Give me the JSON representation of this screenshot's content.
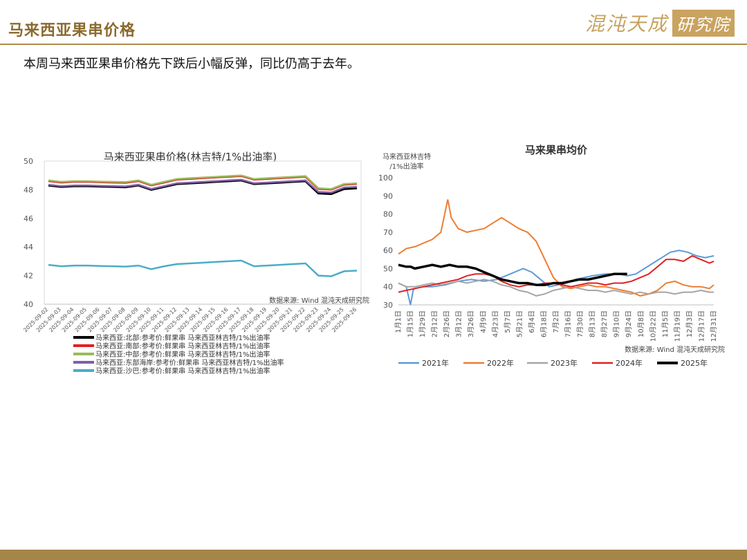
{
  "header": {
    "title": "马来西亚果串价格",
    "logo_text": "混沌天成",
    "logo_box": "研究院"
  },
  "summary": "本周马来西亚果串价格先下跌后小幅反弹，同比仍高于去年。",
  "colors": {
    "gold": "#b08a4a",
    "logo": "#c9a35f"
  },
  "chart_data": [
    {
      "type": "line",
      "title": "马来西亚果串价格(林吉特/1%出油率)",
      "source": "数据来源: Wind  混沌天成研究院",
      "ylim": [
        40,
        50
      ],
      "yticks": [
        40,
        42,
        44,
        46,
        48,
        50
      ],
      "grid": false,
      "legend_position": "bottom",
      "x": [
        "2025-09-02",
        "2025-09-03",
        "2025-09-04",
        "2025-09-05",
        "2025-09-06",
        "2025-09-07",
        "2025-09-08",
        "2025-09-09",
        "2025-09-10",
        "2025-09-11",
        "2025-09-12",
        "2025-09-13",
        "2025-09-14",
        "2025-09-15",
        "2025-09-16",
        "2025-09-17",
        "2025-09-18",
        "2025-09-19",
        "2025-09-20",
        "2025-09-21",
        "2025-09-22",
        "2025-09-23",
        "2025-09-24",
        "2025-09-25",
        "2025-09-26"
      ],
      "series": [
        {
          "name": "马来西亚:北部:参考价:鲜果串 马来西亚林吉特/1%出油率",
          "color": "#000000",
          "values": [
            48.3,
            48.2,
            48.25,
            48.25,
            48.22,
            48.2,
            48.18,
            48.3,
            48.0,
            48.2,
            48.4,
            48.45,
            48.5,
            48.55,
            48.6,
            48.65,
            48.4,
            48.45,
            48.5,
            48.55,
            48.6,
            47.75,
            47.7,
            48.05,
            48.1
          ]
        },
        {
          "name": "马来西亚:南部:参考价:鲜果串 马来西亚林吉特/1%出油率",
          "color": "#e02020",
          "values": [
            48.6,
            48.5,
            48.55,
            48.55,
            48.52,
            48.5,
            48.48,
            48.6,
            48.3,
            48.5,
            48.7,
            48.75,
            48.8,
            48.85,
            48.9,
            48.95,
            48.7,
            48.75,
            48.8,
            48.85,
            48.9,
            48.05,
            48.0,
            48.35,
            48.4
          ]
        },
        {
          "name": "马来西亚:中部:参考价:鲜果串 马来西亚林吉特/1%出油率",
          "color": "#9bbb59",
          "values": [
            48.65,
            48.55,
            48.6,
            48.6,
            48.57,
            48.55,
            48.53,
            48.65,
            48.35,
            48.55,
            48.75,
            48.8,
            48.85,
            48.9,
            48.95,
            49.0,
            48.75,
            48.8,
            48.85,
            48.9,
            48.95,
            48.1,
            48.05,
            48.4,
            48.45
          ]
        },
        {
          "name": "马来西亚:东部海岸:参考价:鲜果串 马来西亚林吉特/1%出油率",
          "color": "#7f5fa8",
          "values": [
            48.35,
            48.25,
            48.3,
            48.3,
            48.27,
            48.25,
            48.23,
            48.35,
            48.05,
            48.25,
            48.45,
            48.5,
            48.55,
            48.6,
            48.65,
            48.7,
            48.45,
            48.5,
            48.55,
            48.6,
            48.65,
            47.85,
            47.8,
            48.15,
            48.2
          ]
        },
        {
          "name": "马来西亚:沙巴:参考价:鲜果串 马来西亚林吉特/1%出油率",
          "color": "#4bacc6",
          "values": [
            42.75,
            42.65,
            42.7,
            42.7,
            42.67,
            42.65,
            42.63,
            42.7,
            42.45,
            42.65,
            42.8,
            42.85,
            42.9,
            42.95,
            43.0,
            43.05,
            42.65,
            42.7,
            42.75,
            42.8,
            42.85,
            42.0,
            41.95,
            42.3,
            42.35
          ]
        }
      ]
    },
    {
      "type": "line",
      "title": "马来果串均价",
      "ylabel": "马来西亚林吉特\n/1%出油率",
      "source": "数据来源: Wind  混沌天成研究院",
      "ylim": [
        30,
        100
      ],
      "yticks": [
        30,
        40,
        50,
        60,
        70,
        80,
        90,
        100
      ],
      "grid": false,
      "legend_position": "bottom",
      "x_labels": [
        "1月1日",
        "1月15日",
        "1月29日",
        "2月12日",
        "2月26日",
        "3月12日",
        "3月26日",
        "4月9日",
        "4月23日",
        "5月7日",
        "5月21日",
        "6月4日",
        "6月18日",
        "7月2日",
        "7月16日",
        "7月30日",
        "8月13日",
        "8月27日",
        "9月10日",
        "9月24日",
        "10月8日",
        "10月22日",
        "11月5日",
        "11月19日",
        "12月3日",
        "12月17日",
        "12月31日"
      ],
      "x_day_range": [
        1,
        365
      ],
      "series": [
        {
          "name": "2021年",
          "color": "#5b9bd5",
          "x": [
            1,
            10,
            15,
            18,
            20,
            30,
            40,
            55,
            70,
            85,
            100,
            115,
            125,
            135,
            145,
            155,
            165,
            175,
            185,
            195,
            205,
            215,
            225,
            240,
            255,
            265,
            275,
            285,
            295,
            305,
            315,
            325,
            335,
            345,
            355,
            365
          ],
          "y": [
            42,
            40,
            30,
            38,
            39,
            40,
            40,
            41,
            43,
            44,
            43,
            44,
            46,
            48,
            50,
            48,
            44,
            40,
            41,
            42,
            44,
            45,
            46,
            47,
            47,
            46,
            47,
            50,
            53,
            56,
            59,
            60,
            59,
            57,
            56,
            57
          ]
        },
        {
          "name": "2022年",
          "color": "#ed7d31",
          "x": [
            1,
            10,
            20,
            30,
            40,
            50,
            58,
            62,
            70,
            80,
            90,
            100,
            110,
            120,
            130,
            140,
            150,
            160,
            170,
            180,
            190,
            200,
            210,
            220,
            230,
            240,
            250,
            260,
            270,
            280,
            290,
            300,
            310,
            320,
            330,
            340,
            350,
            360,
            365
          ],
          "y": [
            58,
            61,
            62,
            64,
            66,
            70,
            88,
            78,
            72,
            70,
            71,
            72,
            75,
            78,
            75,
            72,
            70,
            65,
            55,
            45,
            40,
            39,
            40,
            41,
            40,
            40,
            39,
            38,
            37,
            35,
            36,
            38,
            42,
            43,
            41,
            40,
            40,
            39,
            41
          ]
        },
        {
          "name": "2023年",
          "color": "#a5a5a5",
          "x": [
            1,
            10,
            20,
            30,
            40,
            50,
            60,
            70,
            80,
            90,
            100,
            110,
            120,
            130,
            140,
            150,
            160,
            170,
            180,
            190,
            200,
            210,
            220,
            230,
            240,
            250,
            260,
            270,
            280,
            290,
            300,
            310,
            320,
            330,
            340,
            350,
            360,
            365
          ],
          "y": [
            42,
            40,
            40,
            41,
            42,
            41,
            42,
            43,
            42,
            43,
            44,
            43,
            41,
            40,
            38,
            37,
            35,
            36,
            38,
            39,
            40,
            39,
            38,
            38,
            37,
            38,
            37,
            36,
            37,
            36,
            37,
            37,
            36,
            37,
            37,
            38,
            37,
            37
          ]
        },
        {
          "name": "2024年",
          "color": "#e02020",
          "x": [
            1,
            10,
            20,
            30,
            40,
            50,
            60,
            70,
            80,
            90,
            100,
            110,
            120,
            130,
            140,
            150,
            160,
            170,
            180,
            190,
            200,
            210,
            220,
            230,
            240,
            250,
            260,
            270,
            280,
            290,
            300,
            310,
            320,
            330,
            340,
            350,
            360,
            365
          ],
          "y": [
            37,
            38,
            39,
            40,
            41,
            42,
            43,
            44,
            46,
            47,
            47,
            46,
            43,
            41,
            40,
            41,
            41,
            42,
            42,
            41,
            40,
            41,
            42,
            42,
            41,
            42,
            42,
            43,
            45,
            47,
            51,
            55,
            55,
            54,
            57,
            55,
            53,
            54
          ]
        },
        {
          "name": "2025年",
          "color": "#000000",
          "x": [
            1,
            10,
            15,
            20,
            30,
            40,
            50,
            60,
            70,
            80,
            90,
            100,
            110,
            120,
            130,
            140,
            150,
            160,
            170,
            180,
            190,
            200,
            210,
            220,
            230,
            240,
            250,
            255,
            260,
            265
          ],
          "y": [
            52,
            51,
            51,
            50,
            51,
            52,
            51,
            52,
            51,
            51,
            50,
            48,
            46,
            44,
            43,
            42,
            42,
            41,
            41,
            42,
            42,
            43,
            44,
            44,
            45,
            46,
            47,
            47,
            47,
            47
          ]
        }
      ]
    }
  ]
}
